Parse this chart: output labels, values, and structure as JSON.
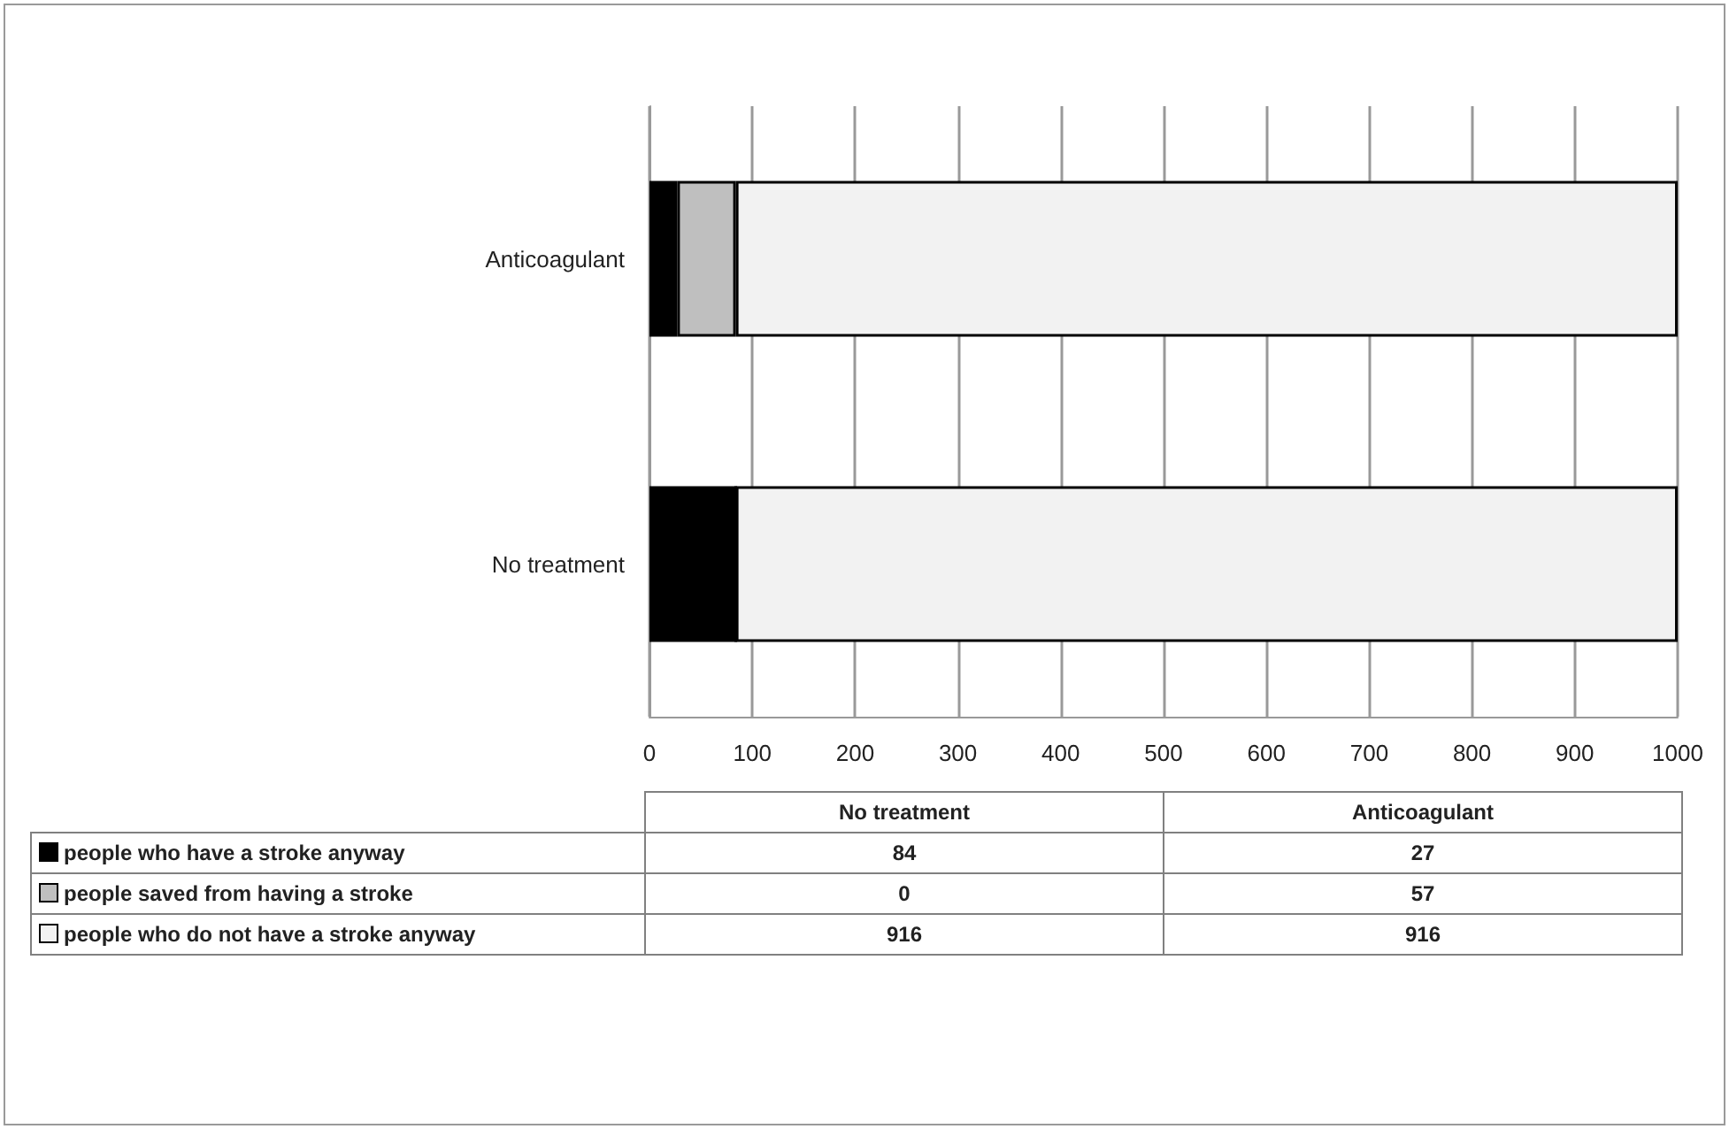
{
  "chart_data": {
    "type": "bar",
    "orientation": "horizontal",
    "stacked": true,
    "categories": [
      "Anticoagulant",
      "No treatment"
    ],
    "series": [
      {
        "name": "people who have a stroke anyway",
        "color": "#000000",
        "values": [
          27,
          84
        ]
      },
      {
        "name": "people saved from having a stroke",
        "color": "#bfbfbf",
        "values": [
          57,
          0
        ]
      },
      {
        "name": "people who do not have a stroke anyway",
        "color": "#f2f2f2",
        "values": [
          916,
          916
        ]
      }
    ],
    "xlim": [
      0,
      1000
    ],
    "xticks": [
      0,
      100,
      200,
      300,
      400,
      500,
      600,
      700,
      800,
      900,
      1000
    ],
    "grid": "x",
    "legend": "bottom",
    "annotations": [
      "84",
      "27",
      "0",
      "57",
      "916",
      "916"
    ]
  }
}
